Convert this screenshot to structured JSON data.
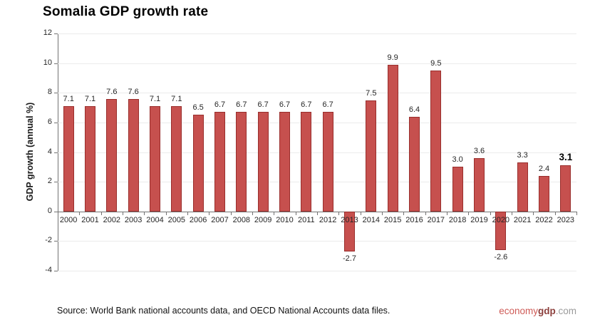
{
  "chart_data": {
    "type": "bar",
    "title": "Somalia GDP growth rate",
    "xlabel": "",
    "ylabel": "GDP growth (annual %)",
    "categories": [
      "2000",
      "2001",
      "2002",
      "2003",
      "2004",
      "2005",
      "2006",
      "2007",
      "2008",
      "2009",
      "2010",
      "2011",
      "2012",
      "2013",
      "2014",
      "2015",
      "2016",
      "2017",
      "2018",
      "2019",
      "2020",
      "2021",
      "2022",
      "2023"
    ],
    "values": [
      7.1,
      7.1,
      7.6,
      7.6,
      7.1,
      7.1,
      6.5,
      6.7,
      6.7,
      6.7,
      6.7,
      6.7,
      6.7,
      -2.7,
      7.5,
      9.9,
      6.4,
      9.5,
      3.0,
      3.6,
      -2.6,
      3.3,
      2.4,
      3.1
    ],
    "ylim": [
      -4,
      12
    ],
    "y_ticks": [
      12,
      10,
      8,
      6,
      4,
      2,
      0,
      -2,
      -4
    ],
    "grid": true,
    "legend": "none",
    "label_decimals": 1,
    "last_label_bold": true,
    "colors": {
      "bar_fill": "#c6504e",
      "bar_border": "#992e2c",
      "axis_line": "#737373",
      "gridline": "#ebebeb",
      "label_text": "#262626"
    }
  },
  "footer": {
    "source": "Source: World Bank national accounts data, and OECD National Accounts data files.",
    "watermark": {
      "economy": "economy",
      "gdp": "gdp",
      "com": ".com",
      "economy_color": "#cf5b57",
      "gdp_color": "#8c3f3c",
      "com_color": "#9b9b9b"
    }
  }
}
